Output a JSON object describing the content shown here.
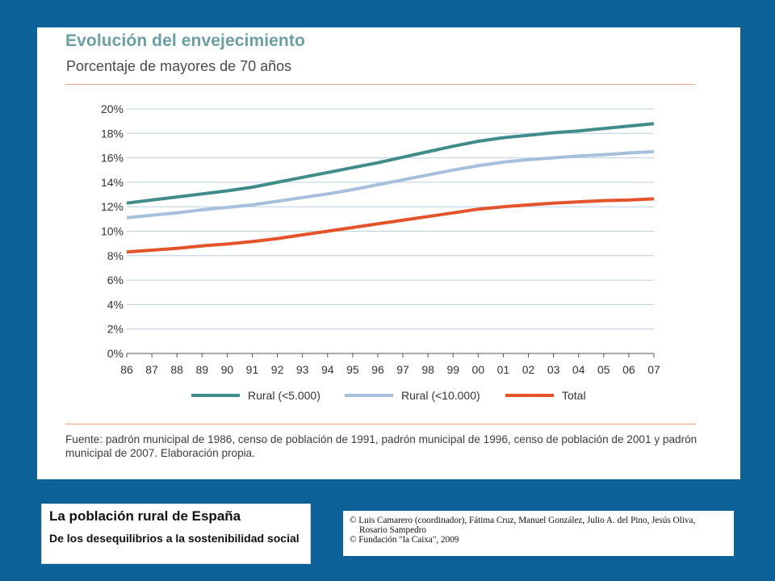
{
  "chart_data": {
    "type": "line",
    "title": "Evolución del envejecimiento",
    "subtitle": "Porcentaje de mayores de 70 años",
    "x": [
      "86",
      "87",
      "88",
      "89",
      "90",
      "91",
      "92",
      "93",
      "94",
      "95",
      "96",
      "97",
      "98",
      "99",
      "00",
      "01",
      "02",
      "03",
      "04",
      "05",
      "06",
      "07"
    ],
    "y_ticks": [
      "0%",
      "2%",
      "4%",
      "6%",
      "8%",
      "10%",
      "12%",
      "14%",
      "16%",
      "18%",
      "20%"
    ],
    "ylim": [
      0,
      20
    ],
    "grid": true,
    "legend_position": "bottom",
    "series": [
      {
        "name": "Rural (<5.000)",
        "color": "#3f8c8a",
        "values": [
          12.3,
          12.55,
          12.8,
          13.05,
          13.3,
          13.6,
          14.0,
          14.4,
          14.8,
          15.2,
          15.6,
          16.05,
          16.5,
          16.95,
          17.35,
          17.65,
          17.85,
          18.05,
          18.2,
          18.4,
          18.6,
          18.8
        ]
      },
      {
        "name": "Rural (<10.000)",
        "color": "#a6bfdc",
        "values": [
          11.1,
          11.3,
          11.5,
          11.75,
          11.95,
          12.15,
          12.45,
          12.75,
          13.05,
          13.4,
          13.8,
          14.2,
          14.6,
          15.0,
          15.35,
          15.65,
          15.85,
          16.0,
          16.15,
          16.25,
          16.4,
          16.5
        ]
      },
      {
        "name": "Total",
        "color": "#e4532a",
        "values": [
          8.3,
          8.45,
          8.6,
          8.8,
          8.95,
          9.15,
          9.4,
          9.7,
          10.0,
          10.3,
          10.6,
          10.9,
          11.2,
          11.5,
          11.8,
          12.0,
          12.15,
          12.3,
          12.4,
          12.5,
          12.55,
          12.65
        ]
      }
    ]
  },
  "source_text": "Fuente: padrón municipal de 1986, censo de población de 1991, padrón municipal de 1996, censo de población de 2001 y padrón municipal de 2007. Elaboración propia.",
  "book": {
    "title": "La población rural de España",
    "subtitle": "De los desequilibrios a la sostenibilidad social"
  },
  "credits": {
    "authors_line1": "© Luis Camarero (coordinador), Fátima Cruz, Manuel González, Julio A. del Pino, Jesús Oliva,",
    "authors_line2": "Rosario Sampedro",
    "publisher_line": "© Fundación \"la Caixa\", 2009"
  }
}
